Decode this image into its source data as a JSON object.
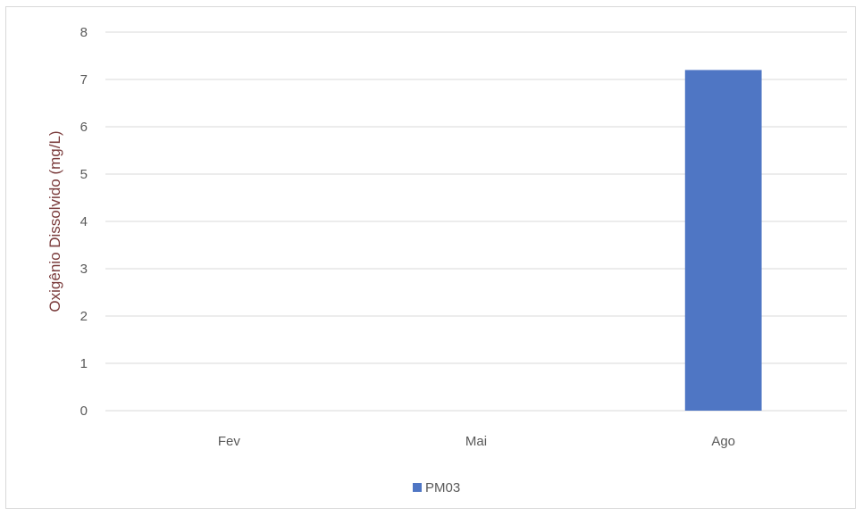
{
  "chart_data": {
    "type": "bar",
    "categories": [
      "Fev",
      "Mai",
      "Ago"
    ],
    "series": [
      {
        "name": "PM03",
        "values": [
          null,
          null,
          7.2
        ],
        "color": "#4f76c4"
      }
    ],
    "xlabel": "",
    "ylabel": "Oxigênio Dissolvido (mg/L)",
    "ylim": [
      0,
      8
    ],
    "yticks": [
      0,
      1,
      2,
      3,
      4,
      5,
      6,
      7,
      8
    ],
    "grid": true,
    "legend_position": "bottom"
  },
  "colors": {
    "grid": "#d9d9d9",
    "ylabel": "#7a3b3b",
    "tick_text": "#595959"
  }
}
